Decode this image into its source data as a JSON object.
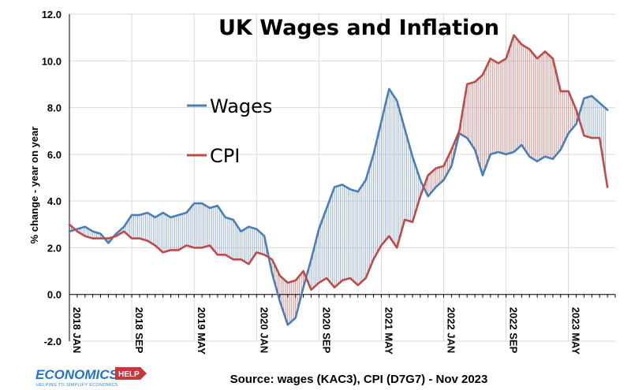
{
  "chart_data": {
    "type": "line",
    "title": "UK Wages and Inflation",
    "ylabel": "% change  - year on year",
    "xlabel": "",
    "ylim": [
      -2.0,
      12.0
    ],
    "yticks": [
      "-2.0",
      "0.0",
      "2.0",
      "4.0",
      "6.0",
      "8.0",
      "10.0",
      "12.0"
    ],
    "ytick_values": [
      -2,
      0,
      2,
      4,
      6,
      8,
      10,
      12
    ],
    "xtick_labels": [
      {
        "label": "2018 JAN",
        "index": 0
      },
      {
        "label": "2018 SEP",
        "index": 8
      },
      {
        "label": "2019 MAY",
        "index": 16
      },
      {
        "label": "2020 JAN",
        "index": 24
      },
      {
        "label": "2020 SEP",
        "index": 32
      },
      {
        "label": "2021 MAY",
        "index": 40
      },
      {
        "label": "2022 JAN",
        "index": 48
      },
      {
        "label": "2022 SEP",
        "index": 56
      },
      {
        "label": "2023 MAY",
        "index": 64
      }
    ],
    "x_range": [
      0,
      70
    ],
    "series": [
      {
        "name": "Wages",
        "color": "#4a7ebb",
        "values": [
          2.7,
          2.8,
          2.9,
          2.7,
          2.6,
          2.2,
          2.6,
          2.9,
          3.4,
          3.4,
          3.5,
          3.3,
          3.5,
          3.3,
          3.4,
          3.5,
          3.9,
          3.9,
          3.7,
          3.8,
          3.3,
          3.2,
          2.7,
          2.9,
          2.8,
          2.5,
          0.9,
          -0.3,
          -1.3,
          -1.0,
          0.3,
          1.5,
          2.8,
          3.7,
          4.6,
          4.7,
          4.5,
          4.4,
          4.9,
          6.0,
          7.4,
          8.8,
          8.3,
          7.1,
          5.9,
          4.9,
          4.2,
          4.6,
          4.9,
          5.5,
          6.9,
          6.7,
          6.2,
          5.1,
          6.0,
          6.1,
          6.0,
          6.1,
          6.4,
          5.9,
          5.7,
          5.9,
          5.8,
          6.2,
          6.9,
          7.3,
          8.4,
          8.5,
          8.2,
          7.9
        ]
      },
      {
        "name": "CPI",
        "color": "#be4b48",
        "values": [
          3.0,
          2.7,
          2.5,
          2.4,
          2.4,
          2.4,
          2.5,
          2.7,
          2.4,
          2.4,
          2.3,
          2.1,
          1.8,
          1.9,
          1.9,
          2.1,
          2.0,
          2.0,
          2.1,
          1.7,
          1.7,
          1.5,
          1.5,
          1.3,
          1.8,
          1.7,
          1.5,
          0.8,
          0.5,
          0.6,
          1.0,
          0.2,
          0.5,
          0.7,
          0.3,
          0.6,
          0.7,
          0.4,
          0.7,
          1.5,
          2.1,
          2.5,
          2.0,
          3.2,
          3.1,
          4.2,
          5.1,
          5.4,
          5.5,
          6.2,
          7.0,
          9.0,
          9.1,
          9.4,
          10.1,
          9.9,
          10.1,
          11.1,
          10.7,
          10.5,
          10.1,
          10.4,
          10.1,
          8.7,
          8.7,
          7.9,
          6.8,
          6.7,
          6.7,
          4.6
        ]
      }
    ],
    "legend_position": "center-left",
    "source_text": "Source: wages (KAC3), CPI (D7G7) - Nov 2023"
  },
  "logo": {
    "main": "ECONOMICS",
    "badge": "HELP",
    "tagline": "HELPING TO SIMPLIFY ECONOMICS"
  }
}
